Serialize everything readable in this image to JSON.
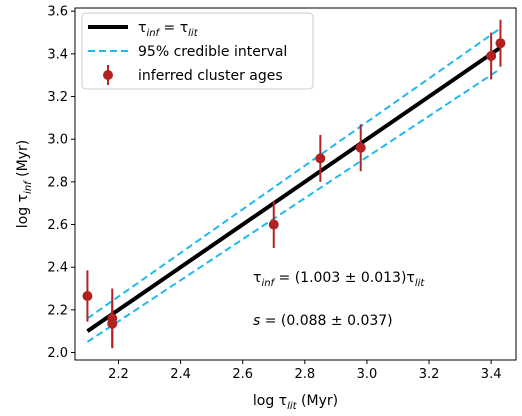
{
  "chart_data": {
    "type": "scatter",
    "xlabel": {
      "prefix": "log τ",
      "sub": "lit",
      "suffix": " (Myr)"
    },
    "ylabel": {
      "prefix": "log τ",
      "sub": "inf",
      "suffix": " (Myr)"
    },
    "xlim": [
      2.06,
      3.48
    ],
    "ylim": [
      1.965,
      3.615
    ],
    "xticks": [
      "2.2",
      "2.4",
      "2.6",
      "2.8",
      "3.0",
      "3.2",
      "3.4"
    ],
    "yticks": [
      "2.0",
      "2.2",
      "2.4",
      "2.6",
      "2.8",
      "3.0",
      "3.2",
      "3.4",
      "3.6"
    ],
    "grid": false,
    "legend_position": "top-left",
    "colors": {
      "fit_line": "#000000",
      "credible_interval": "#1fb9f0",
      "points": "#b22222"
    },
    "series": [
      {
        "name": "τ_inf = τ_lit",
        "kind": "line",
        "x": [
          2.1,
          3.43
        ],
        "y": [
          2.1,
          3.43
        ]
      },
      {
        "name": "95% credible interval",
        "kind": "dashed-band",
        "x": [
          2.1,
          3.43
        ],
        "upper": [
          2.16,
          3.52
        ],
        "lower": [
          2.05,
          3.33
        ]
      },
      {
        "name": "inferred cluster ages",
        "kind": "errorbar",
        "points": [
          {
            "x": 2.1,
            "y": 2.265,
            "err": 0.12
          },
          {
            "x": 2.18,
            "y": 2.16,
            "err": 0.14
          },
          {
            "x": 2.18,
            "y": 2.135,
            "err": 0.11
          },
          {
            "x": 2.7,
            "y": 2.6,
            "err": 0.11
          },
          {
            "x": 2.85,
            "y": 2.91,
            "err": 0.11
          },
          {
            "x": 2.98,
            "y": 2.96,
            "err": 0.11
          },
          {
            "x": 3.4,
            "y": 3.39,
            "err": 0.11
          },
          {
            "x": 3.43,
            "y": 3.45,
            "err": 0.11
          }
        ]
      }
    ],
    "annotations": [
      {
        "parts": [
          {
            "text": "τ"
          },
          {
            "text": "inf",
            "sub": true
          },
          {
            "text": " = (1.003 ± 0.013)τ"
          },
          {
            "text": "lit",
            "sub": true
          }
        ]
      },
      {
        "parts": [
          {
            "text": "s",
            "italic": true
          },
          {
            "text": " = (0.088 ± 0.037)"
          }
        ]
      }
    ],
    "legend": [
      {
        "kind": "line",
        "parts": [
          {
            "text": "τ"
          },
          {
            "text": "inf",
            "sub": true
          },
          {
            "text": " = τ"
          },
          {
            "text": "lit",
            "sub": true
          }
        ]
      },
      {
        "kind": "dashed",
        "parts": [
          {
            "text": "95% credible interval"
          }
        ]
      },
      {
        "kind": "point",
        "parts": [
          {
            "text": "inferred cluster ages"
          }
        ]
      }
    ]
  }
}
